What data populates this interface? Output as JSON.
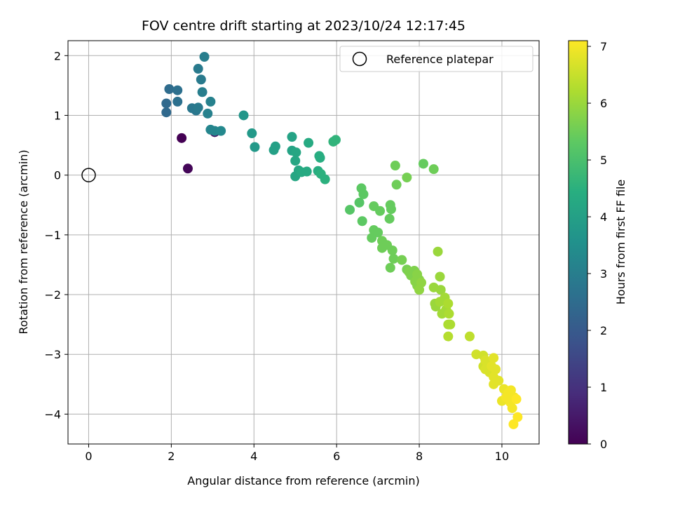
{
  "chart_data": {
    "type": "scatter",
    "title": "FOV centre drift starting at 2023/10/24 12:17:45",
    "xlabel": "Angular distance from reference (arcmin)",
    "ylabel": "Rotation from reference (arcmin)",
    "xlim": [
      -0.5,
      10.9
    ],
    "ylim": [
      -4.5,
      2.25
    ],
    "xticks": [
      "0",
      "2",
      "4",
      "6",
      "8",
      "10"
    ],
    "yticks": [
      "−4",
      "−3",
      "−2",
      "−1",
      "0",
      "1",
      "2"
    ],
    "grid": true,
    "legend": {
      "position": "top-right",
      "entries": [
        "Reference platepar"
      ]
    },
    "reference_point": {
      "x": 0,
      "y": 0
    },
    "colorbar": {
      "label": "Hours from first FF file",
      "min": 0,
      "max": 7.1,
      "ticks": [
        "0",
        "1",
        "2",
        "3",
        "4",
        "5",
        "6",
        "7"
      ],
      "colormap": "viridis"
    },
    "points": [
      {
        "x": 2.25,
        "y": 0.62,
        "h": 0.0
      },
      {
        "x": 2.4,
        "y": 0.11,
        "h": 0.1
      },
      {
        "x": 3.05,
        "y": 0.72,
        "h": 0.3
      },
      {
        "x": 1.88,
        "y": 1.05,
        "h": 2.4
      },
      {
        "x": 1.88,
        "y": 1.2,
        "h": 2.4
      },
      {
        "x": 1.95,
        "y": 1.44,
        "h": 2.5
      },
      {
        "x": 2.15,
        "y": 1.42,
        "h": 2.6
      },
      {
        "x": 2.15,
        "y": 1.23,
        "h": 2.6
      },
      {
        "x": 2.5,
        "y": 1.12,
        "h": 2.8
      },
      {
        "x": 2.6,
        "y": 1.08,
        "h": 2.8
      },
      {
        "x": 2.65,
        "y": 1.13,
        "h": 2.9
      },
      {
        "x": 2.65,
        "y": 1.78,
        "h": 2.9
      },
      {
        "x": 2.72,
        "y": 1.6,
        "h": 2.9
      },
      {
        "x": 2.75,
        "y": 1.39,
        "h": 3.0
      },
      {
        "x": 2.8,
        "y": 1.98,
        "h": 3.0
      },
      {
        "x": 2.88,
        "y": 1.03,
        "h": 3.1
      },
      {
        "x": 2.95,
        "y": 1.23,
        "h": 3.1
      },
      {
        "x": 2.95,
        "y": 0.76,
        "h": 3.2
      },
      {
        "x": 3.05,
        "y": 0.74,
        "h": 3.2
      },
      {
        "x": 3.2,
        "y": 0.74,
        "h": 3.3
      },
      {
        "x": 3.75,
        "y": 1.0,
        "h": 3.7
      },
      {
        "x": 3.95,
        "y": 0.7,
        "h": 3.8
      },
      {
        "x": 4.02,
        "y": 0.47,
        "h": 3.8
      },
      {
        "x": 4.48,
        "y": 0.42,
        "h": 4.0
      },
      {
        "x": 4.52,
        "y": 0.48,
        "h": 4.0
      },
      {
        "x": 4.92,
        "y": 0.64,
        "h": 4.1
      },
      {
        "x": 4.92,
        "y": 0.41,
        "h": 4.1
      },
      {
        "x": 5.02,
        "y": 0.38,
        "h": 4.2
      },
      {
        "x": 5.0,
        "y": 0.24,
        "h": 4.2
      },
      {
        "x": 5.08,
        "y": 0.08,
        "h": 4.2
      },
      {
        "x": 5.0,
        "y": -0.02,
        "h": 4.2
      },
      {
        "x": 5.15,
        "y": 0.05,
        "h": 4.3
      },
      {
        "x": 5.28,
        "y": 0.06,
        "h": 4.3
      },
      {
        "x": 5.32,
        "y": 0.54,
        "h": 4.3
      },
      {
        "x": 5.55,
        "y": 0.07,
        "h": 4.4
      },
      {
        "x": 5.58,
        "y": 0.32,
        "h": 4.4
      },
      {
        "x": 5.6,
        "y": 0.29,
        "h": 4.4
      },
      {
        "x": 5.62,
        "y": 0.02,
        "h": 4.5
      },
      {
        "x": 5.72,
        "y": -0.07,
        "h": 4.5
      },
      {
        "x": 5.92,
        "y": 0.56,
        "h": 4.6
      },
      {
        "x": 5.98,
        "y": 0.59,
        "h": 4.6
      },
      {
        "x": 6.32,
        "y": -0.58,
        "h": 5.2
      },
      {
        "x": 6.55,
        "y": -0.46,
        "h": 5.2
      },
      {
        "x": 6.6,
        "y": -0.22,
        "h": 5.3
      },
      {
        "x": 6.65,
        "y": -0.32,
        "h": 5.3
      },
      {
        "x": 6.62,
        "y": -0.77,
        "h": 5.3
      },
      {
        "x": 6.9,
        "y": -0.52,
        "h": 5.4
      },
      {
        "x": 7.05,
        "y": -0.6,
        "h": 5.4
      },
      {
        "x": 7.3,
        "y": -0.5,
        "h": 5.4
      },
      {
        "x": 7.32,
        "y": -0.57,
        "h": 5.4
      },
      {
        "x": 7.28,
        "y": -0.73,
        "h": 5.4
      },
      {
        "x": 6.9,
        "y": -0.92,
        "h": 5.4
      },
      {
        "x": 6.85,
        "y": -1.05,
        "h": 5.4
      },
      {
        "x": 7.0,
        "y": -0.96,
        "h": 5.4
      },
      {
        "x": 7.1,
        "y": -1.1,
        "h": 5.5
      },
      {
        "x": 7.1,
        "y": -1.22,
        "h": 5.5
      },
      {
        "x": 7.22,
        "y": -1.17,
        "h": 5.5
      },
      {
        "x": 7.35,
        "y": -1.26,
        "h": 5.5
      },
      {
        "x": 7.3,
        "y": -1.55,
        "h": 5.5
      },
      {
        "x": 7.38,
        "y": -1.4,
        "h": 5.5
      },
      {
        "x": 7.42,
        "y": 0.16,
        "h": 5.5
      },
      {
        "x": 7.45,
        "y": -0.16,
        "h": 5.5
      },
      {
        "x": 7.58,
        "y": -1.42,
        "h": 5.6
      },
      {
        "x": 7.7,
        "y": -0.04,
        "h": 5.6
      },
      {
        "x": 7.7,
        "y": -1.58,
        "h": 5.6
      },
      {
        "x": 7.75,
        "y": -1.62,
        "h": 5.7
      },
      {
        "x": 7.8,
        "y": -1.68,
        "h": 5.7
      },
      {
        "x": 7.88,
        "y": -1.6,
        "h": 5.7
      },
      {
        "x": 7.9,
        "y": -1.78,
        "h": 5.8
      },
      {
        "x": 7.95,
        "y": -1.66,
        "h": 5.8
      },
      {
        "x": 7.95,
        "y": -1.85,
        "h": 5.8
      },
      {
        "x": 8.0,
        "y": -1.75,
        "h": 5.8
      },
      {
        "x": 8.0,
        "y": -1.92,
        "h": 5.9
      },
      {
        "x": 8.05,
        "y": -1.8,
        "h": 5.9
      },
      {
        "x": 8.1,
        "y": 0.19,
        "h": 5.4
      },
      {
        "x": 8.35,
        "y": 0.1,
        "h": 5.5
      },
      {
        "x": 8.35,
        "y": -1.88,
        "h": 6.0
      },
      {
        "x": 8.38,
        "y": -2.15,
        "h": 6.0
      },
      {
        "x": 8.4,
        "y": -2.2,
        "h": 6.0
      },
      {
        "x": 8.45,
        "y": -1.28,
        "h": 6.0
      },
      {
        "x": 8.5,
        "y": -1.7,
        "h": 6.0
      },
      {
        "x": 8.52,
        "y": -1.92,
        "h": 6.0
      },
      {
        "x": 8.5,
        "y": -2.12,
        "h": 6.1
      },
      {
        "x": 8.55,
        "y": -2.32,
        "h": 6.1
      },
      {
        "x": 8.62,
        "y": -2.05,
        "h": 6.1
      },
      {
        "x": 8.65,
        "y": -2.25,
        "h": 6.1
      },
      {
        "x": 8.7,
        "y": -2.15,
        "h": 6.2
      },
      {
        "x": 8.72,
        "y": -2.32,
        "h": 6.2
      },
      {
        "x": 8.7,
        "y": -2.5,
        "h": 6.2
      },
      {
        "x": 8.75,
        "y": -2.5,
        "h": 6.2
      },
      {
        "x": 8.7,
        "y": -2.7,
        "h": 6.3
      },
      {
        "x": 9.22,
        "y": -2.7,
        "h": 6.4
      },
      {
        "x": 9.38,
        "y": -3.0,
        "h": 6.6
      },
      {
        "x": 9.55,
        "y": -3.02,
        "h": 6.6
      },
      {
        "x": 9.55,
        "y": -3.2,
        "h": 6.6
      },
      {
        "x": 9.6,
        "y": -3.1,
        "h": 6.7
      },
      {
        "x": 9.6,
        "y": -3.25,
        "h": 6.7
      },
      {
        "x": 9.65,
        "y": -3.15,
        "h": 6.7
      },
      {
        "x": 9.7,
        "y": -3.3,
        "h": 6.7
      },
      {
        "x": 9.75,
        "y": -3.2,
        "h": 6.8
      },
      {
        "x": 9.8,
        "y": -3.06,
        "h": 6.8
      },
      {
        "x": 9.8,
        "y": -3.38,
        "h": 6.8
      },
      {
        "x": 9.8,
        "y": -3.5,
        "h": 6.8
      },
      {
        "x": 9.85,
        "y": -3.25,
        "h": 6.8
      },
      {
        "x": 9.92,
        "y": -3.44,
        "h": 6.8
      },
      {
        "x": 10.0,
        "y": -3.78,
        "h": 6.9
      },
      {
        "x": 10.05,
        "y": -3.58,
        "h": 6.9
      },
      {
        "x": 10.1,
        "y": -3.72,
        "h": 7.0
      },
      {
        "x": 10.15,
        "y": -3.65,
        "h": 7.0
      },
      {
        "x": 10.2,
        "y": -3.8,
        "h": 7.0
      },
      {
        "x": 10.22,
        "y": -3.6,
        "h": 7.0
      },
      {
        "x": 10.25,
        "y": -3.9,
        "h": 7.0
      },
      {
        "x": 10.3,
        "y": -3.72,
        "h": 7.0
      },
      {
        "x": 10.35,
        "y": -3.75,
        "h": 7.1
      },
      {
        "x": 10.38,
        "y": -4.05,
        "h": 7.1
      },
      {
        "x": 10.28,
        "y": -4.17,
        "h": 7.1
      }
    ]
  }
}
